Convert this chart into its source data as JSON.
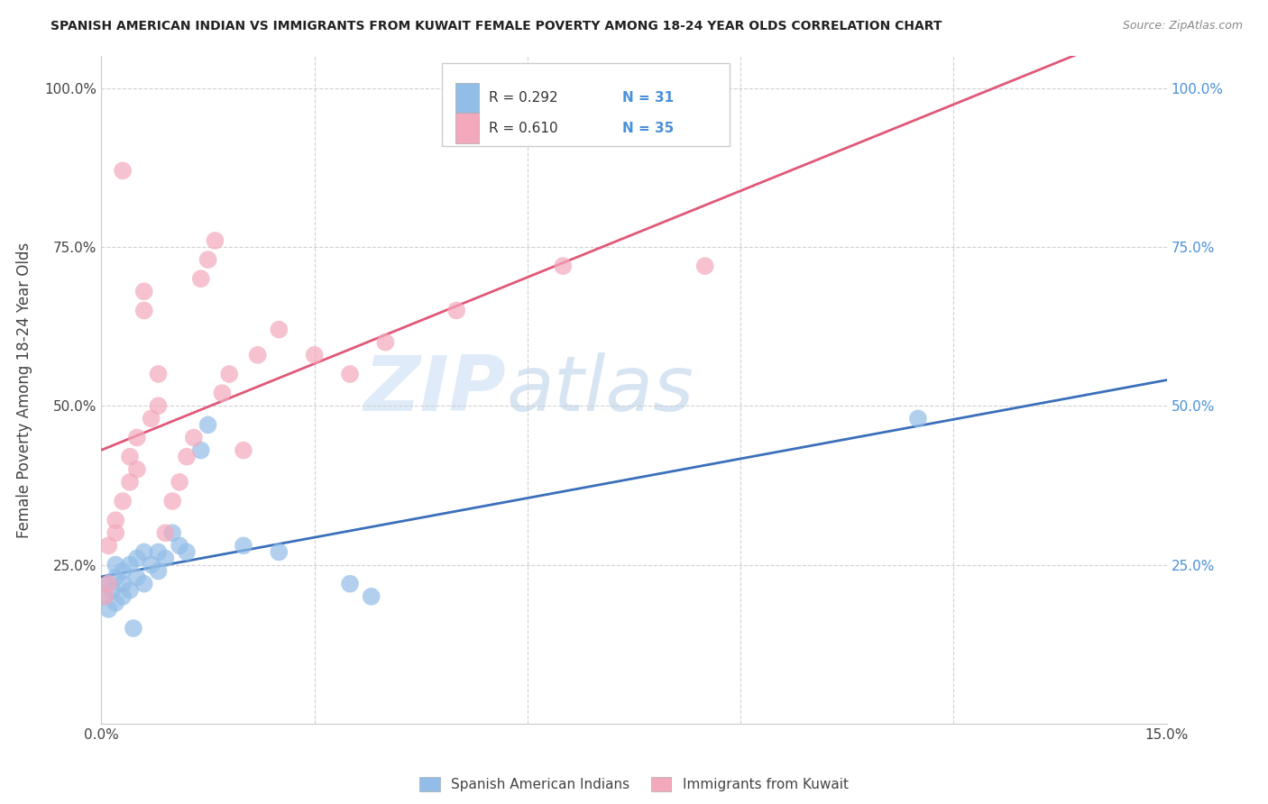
{
  "title": "SPANISH AMERICAN INDIAN VS IMMIGRANTS FROM KUWAIT FEMALE POVERTY AMONG 18-24 YEAR OLDS CORRELATION CHART",
  "source": "Source: ZipAtlas.com",
  "ylabel": "Female Poverty Among 18-24 Year Olds",
  "xlim": [
    0.0,
    0.15
  ],
  "ylim": [
    0.0,
    1.05
  ],
  "blue_R": "0.292",
  "blue_N": "31",
  "pink_R": "0.610",
  "pink_N": "35",
  "legend_label1": "Spanish American Indians",
  "legend_label2": "Immigrants from Kuwait",
  "blue_color": "#92BDE8",
  "pink_color": "#F4A8BC",
  "blue_line_color": "#3A6FBA",
  "pink_line_color": "#E05878",
  "watermark_zip": "ZIP",
  "watermark_atlas": "atlas",
  "background_color": "#ffffff",
  "grid_color": "#cccccc",
  "blue_x": [
    0.0005,
    0.001,
    0.001,
    0.0015,
    0.002,
    0.002,
    0.002,
    0.003,
    0.003,
    0.003,
    0.004,
    0.004,
    0.005,
    0.005,
    0.006,
    0.006,
    0.007,
    0.008,
    0.008,
    0.009,
    0.01,
    0.011,
    0.012,
    0.014,
    0.015,
    0.02,
    0.025,
    0.035,
    0.038,
    0.115,
    0.0045
  ],
  "blue_y": [
    0.2,
    0.18,
    0.22,
    0.21,
    0.19,
    0.23,
    0.25,
    0.2,
    0.22,
    0.24,
    0.21,
    0.25,
    0.23,
    0.26,
    0.22,
    0.27,
    0.25,
    0.24,
    0.27,
    0.26,
    0.3,
    0.28,
    0.27,
    0.43,
    0.47,
    0.28,
    0.27,
    0.22,
    0.2,
    0.48,
    0.15
  ],
  "pink_x": [
    0.0005,
    0.001,
    0.001,
    0.002,
    0.002,
    0.003,
    0.003,
    0.004,
    0.004,
    0.005,
    0.005,
    0.006,
    0.006,
    0.007,
    0.008,
    0.008,
    0.009,
    0.01,
    0.011,
    0.012,
    0.013,
    0.014,
    0.015,
    0.016,
    0.017,
    0.018,
    0.02,
    0.022,
    0.025,
    0.03,
    0.035,
    0.04,
    0.05,
    0.065,
    0.085
  ],
  "pink_y": [
    0.2,
    0.22,
    0.28,
    0.3,
    0.32,
    0.35,
    0.87,
    0.38,
    0.42,
    0.4,
    0.45,
    0.65,
    0.68,
    0.48,
    0.5,
    0.55,
    0.3,
    0.35,
    0.38,
    0.42,
    0.45,
    0.7,
    0.73,
    0.76,
    0.52,
    0.55,
    0.43,
    0.58,
    0.62,
    0.58,
    0.55,
    0.6,
    0.65,
    0.72,
    0.72
  ]
}
